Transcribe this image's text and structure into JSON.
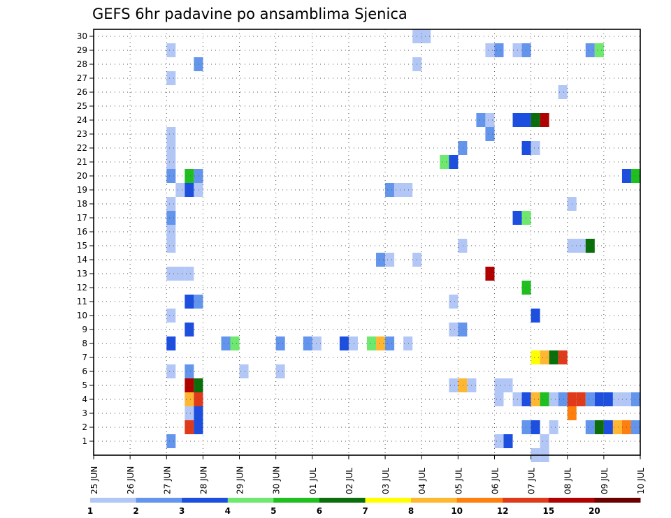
{
  "chart_data": {
    "type": "heatmap",
    "title": "GEFS 6hr padavine po ansamblima Sjenica",
    "x_ticks": [
      "25 JUN",
      "26 JUN",
      "27 JUN",
      "28 JUN",
      "29 JUN",
      "30 JUN",
      "01 JUL",
      "02 JUL",
      "03 JUL",
      "04 JUL",
      "05 JUL",
      "06 JUL",
      "07 JUL",
      "08 JUL",
      "09 JUL",
      "10 JUL"
    ],
    "y_ticks": [
      "1",
      "2",
      "3",
      "4",
      "5",
      "6",
      "7",
      "8",
      "9",
      "10",
      "11",
      "12",
      "13",
      "14",
      "15",
      "16",
      "17",
      "18",
      "19",
      "20",
      "21",
      "22",
      "23",
      "24",
      "25",
      "26",
      "27",
      "28",
      "29",
      "30"
    ],
    "members": [
      1,
      30
    ],
    "step_hours": 6,
    "grid": true,
    "colorbar": {
      "levels": [
        "1",
        "2",
        "3",
        "4",
        "5",
        "6",
        "7",
        "8",
        "10",
        "12",
        "15",
        "20"
      ],
      "colors": [
        "#b3c7f7",
        "#6495ed",
        "#1c4ee0",
        "#6ee86e",
        "#1fbf1f",
        "#0a6e0a",
        "#ffff00",
        "#ffb732",
        "#ff7f0e",
        "#e03a1a",
        "#b00000",
        "#6b0000"
      ]
    },
    "cells": [
      {
        "member": 1,
        "start": "27 JUN 00",
        "steps": 1,
        "level": 2
      },
      {
        "member": 1,
        "start": "06 JUL 00",
        "steps": 1,
        "level": 1
      },
      {
        "member": 1,
        "start": "06 JUL 06",
        "steps": 1,
        "level": 3
      },
      {
        "member": 1,
        "start": "07 JUL 06",
        "steps": 1,
        "level": 1
      },
      {
        "member": 0,
        "start": "07 JUL 00",
        "steps": 1,
        "level": 1
      },
      {
        "member": 0,
        "start": "07 JUL 06",
        "steps": 1,
        "level": 1
      },
      {
        "member": 2,
        "start": "27 JUN 12",
        "steps": 1,
        "level": 12
      },
      {
        "member": 2,
        "start": "27 JUN 18",
        "steps": 1,
        "level": 3
      },
      {
        "member": 2,
        "start": "06 JUL 18",
        "steps": 1,
        "level": 2
      },
      {
        "member": 2,
        "start": "07 JUL 00",
        "steps": 1,
        "level": 3
      },
      {
        "member": 2,
        "start": "07 JUL 12",
        "steps": 1,
        "level": 1
      },
      {
        "member": 2,
        "start": "08 JUL 12",
        "steps": 1,
        "level": 2
      },
      {
        "member": 2,
        "start": "08 JUL 18",
        "steps": 1,
        "level": 6
      },
      {
        "member": 2,
        "start": "09 JUL 00",
        "steps": 1,
        "level": 3
      },
      {
        "member": 2,
        "start": "09 JUL 06",
        "steps": 1,
        "level": 8
      },
      {
        "member": 2,
        "start": "09 JUL 12",
        "steps": 1,
        "level": 10
      },
      {
        "member": 2,
        "start": "09 JUL 18",
        "steps": 1,
        "level": 2
      },
      {
        "member": 3,
        "start": "27 JUN 12",
        "steps": 1,
        "level": 1
      },
      {
        "member": 3,
        "start": "27 JUN 18",
        "steps": 1,
        "level": 3
      },
      {
        "member": 3,
        "start": "08 JUL 00",
        "steps": 1,
        "level": 10
      },
      {
        "member": 4,
        "start": "27 JUN 12",
        "steps": 1,
        "level": 8
      },
      {
        "member": 4,
        "start": "27 JUN 18",
        "steps": 1,
        "level": 12
      },
      {
        "member": 4,
        "start": "06 JUL 00",
        "steps": 1,
        "level": 1
      },
      {
        "member": 4,
        "start": "06 JUL 12",
        "steps": 1,
        "level": 1
      },
      {
        "member": 4,
        "start": "06 JUL 18",
        "steps": 1,
        "level": 3
      },
      {
        "member": 4,
        "start": "07 JUL 00",
        "steps": 1,
        "level": 8
      },
      {
        "member": 4,
        "start": "07 JUL 06",
        "steps": 1,
        "level": 5
      },
      {
        "member": 4,
        "start": "07 JUL 12",
        "steps": 1,
        "level": 1
      },
      {
        "member": 4,
        "start": "07 JUL 18",
        "steps": 1,
        "level": 2
      },
      {
        "member": 4,
        "start": "08 JUL 00",
        "steps": 1,
        "level": 12
      },
      {
        "member": 4,
        "start": "08 JUL 06",
        "steps": 1,
        "level": 12
      },
      {
        "member": 4,
        "start": "08 JUL 12",
        "steps": 1,
        "level": 2
      },
      {
        "member": 4,
        "start": "08 JUL 18",
        "steps": 1,
        "level": 3
      },
      {
        "member": 4,
        "start": "09 JUL 00",
        "steps": 1,
        "level": 3
      },
      {
        "member": 4,
        "start": "09 JUL 06",
        "steps": 1,
        "level": 1
      },
      {
        "member": 4,
        "start": "09 JUL 12",
        "steps": 1,
        "level": 1
      },
      {
        "member": 4,
        "start": "09 JUL 18",
        "steps": 1,
        "level": 2
      },
      {
        "member": 5,
        "start": "27 JUN 12",
        "steps": 1,
        "level": 15
      },
      {
        "member": 5,
        "start": "27 JUN 18",
        "steps": 1,
        "level": 6
      },
      {
        "member": 5,
        "start": "04 JUL 18",
        "steps": 1,
        "level": 1
      },
      {
        "member": 5,
        "start": "05 JUL 00",
        "steps": 1,
        "level": 8
      },
      {
        "member": 5,
        "start": "05 JUL 06",
        "steps": 1,
        "level": 1
      },
      {
        "member": 5,
        "start": "06 JUL 00",
        "steps": 2,
        "level": 1
      },
      {
        "member": 6,
        "start": "27 JUN 00",
        "steps": 1,
        "level": 1
      },
      {
        "member": 6,
        "start": "27 JUN 12",
        "steps": 1,
        "level": 2
      },
      {
        "member": 6,
        "start": "29 JUN 00",
        "steps": 1,
        "level": 1
      },
      {
        "member": 6,
        "start": "30 JUN 00",
        "steps": 1,
        "level": 1
      },
      {
        "member": 7,
        "start": "07 JUL 00",
        "steps": 1,
        "level": 7
      },
      {
        "member": 7,
        "start": "07 JUL 06",
        "steps": 1,
        "level": 8
      },
      {
        "member": 7,
        "start": "07 JUL 12",
        "steps": 1,
        "level": 6
      },
      {
        "member": 7,
        "start": "07 JUL 18",
        "steps": 1,
        "level": 12
      },
      {
        "member": 8,
        "start": "27 JUN 00",
        "steps": 1,
        "level": 3
      },
      {
        "member": 8,
        "start": "28 JUN 12",
        "steps": 1,
        "level": 2
      },
      {
        "member": 8,
        "start": "28 JUN 18",
        "steps": 1,
        "level": 4
      },
      {
        "member": 8,
        "start": "30 JUN 00",
        "steps": 1,
        "level": 2
      },
      {
        "member": 8,
        "start": "30 JUN 18",
        "steps": 1,
        "level": 2
      },
      {
        "member": 8,
        "start": "01 JUL 00",
        "steps": 1,
        "level": 1
      },
      {
        "member": 8,
        "start": "01 JUL 18",
        "steps": 1,
        "level": 3
      },
      {
        "member": 8,
        "start": "02 JUL 00",
        "steps": 1,
        "level": 1
      },
      {
        "member": 8,
        "start": "02 JUL 12",
        "steps": 1,
        "level": 4
      },
      {
        "member": 8,
        "start": "02 JUL 18",
        "steps": 1,
        "level": 8
      },
      {
        "member": 8,
        "start": "03 JUL 00",
        "steps": 1,
        "level": 2
      },
      {
        "member": 8,
        "start": "03 JUL 12",
        "steps": 1,
        "level": 1
      },
      {
        "member": 9,
        "start": "27 JUN 12",
        "steps": 1,
        "level": 3
      },
      {
        "member": 9,
        "start": "04 JUL 18",
        "steps": 1,
        "level": 1
      },
      {
        "member": 9,
        "start": "05 JUL 00",
        "steps": 1,
        "level": 2
      },
      {
        "member": 10,
        "start": "27 JUN 00",
        "steps": 1,
        "level": 1
      },
      {
        "member": 10,
        "start": "07 JUL 00",
        "steps": 1,
        "level": 3
      },
      {
        "member": 11,
        "start": "27 JUN 12",
        "steps": 1,
        "level": 3
      },
      {
        "member": 11,
        "start": "27 JUN 18",
        "steps": 1,
        "level": 2
      },
      {
        "member": 11,
        "start": "04 JUL 18",
        "steps": 1,
        "level": 1
      },
      {
        "member": 12,
        "start": "06 JUL 18",
        "steps": 1,
        "level": 5
      },
      {
        "member": 13,
        "start": "05 JUL 18",
        "steps": 1,
        "level": 15
      },
      {
        "member": 13,
        "start": "27 JUN 00",
        "steps": 2,
        "level": 1
      },
      {
        "member": 13,
        "start": "27 JUN 12",
        "steps": 1,
        "level": 1
      },
      {
        "member": 14,
        "start": "02 JUL 18",
        "steps": 1,
        "level": 2
      },
      {
        "member": 14,
        "start": "03 JUL 00",
        "steps": 1,
        "level": 1
      },
      {
        "member": 14,
        "start": "03 JUL 18",
        "steps": 1,
        "level": 1
      },
      {
        "member": 15,
        "start": "27 JUN 00",
        "steps": 1,
        "level": 1
      },
      {
        "member": 15,
        "start": "05 JUL 00",
        "steps": 1,
        "level": 1
      },
      {
        "member": 15,
        "start": "08 JUL 00",
        "steps": 2,
        "level": 1
      },
      {
        "member": 15,
        "start": "08 JUL 12",
        "steps": 1,
        "level": 6
      },
      {
        "member": 16,
        "start": "27 JUN 00",
        "steps": 1,
        "level": 1
      },
      {
        "member": 17,
        "start": "27 JUN 00",
        "steps": 1,
        "level": 2
      },
      {
        "member": 17,
        "start": "06 JUL 12",
        "steps": 1,
        "level": 3
      },
      {
        "member": 17,
        "start": "06 JUL 18",
        "steps": 1,
        "level": 4
      },
      {
        "member": 18,
        "start": "27 JUN 00",
        "steps": 1,
        "level": 1
      },
      {
        "member": 18,
        "start": "08 JUL 00",
        "steps": 1,
        "level": 1
      },
      {
        "member": 19,
        "start": "27 JUN 06",
        "steps": 1,
        "level": 1
      },
      {
        "member": 19,
        "start": "27 JUN 12",
        "steps": 1,
        "level": 3
      },
      {
        "member": 19,
        "start": "27 JUN 18",
        "steps": 1,
        "level": 1
      },
      {
        "member": 19,
        "start": "03 JUL 00",
        "steps": 1,
        "level": 2
      },
      {
        "member": 19,
        "start": "03 JUL 06",
        "steps": 2,
        "level": 1
      },
      {
        "member": 20,
        "start": "27 JUN 00",
        "steps": 1,
        "level": 2
      },
      {
        "member": 20,
        "start": "27 JUN 12",
        "steps": 1,
        "level": 5
      },
      {
        "member": 20,
        "start": "27 JUN 18",
        "steps": 1,
        "level": 2
      },
      {
        "member": 20,
        "start": "09 JUL 12",
        "steps": 1,
        "level": 3
      },
      {
        "member": 20,
        "start": "09 JUL 18",
        "steps": 1,
        "level": 5
      },
      {
        "member": 21,
        "start": "27 JUN 00",
        "steps": 1,
        "level": 1
      },
      {
        "member": 21,
        "start": "04 JUL 12",
        "steps": 1,
        "level": 4
      },
      {
        "member": 21,
        "start": "04 JUL 18",
        "steps": 1,
        "level": 3
      },
      {
        "member": 22,
        "start": "27 JUN 00",
        "steps": 1,
        "level": 1
      },
      {
        "member": 22,
        "start": "05 JUL 00",
        "steps": 1,
        "level": 2
      },
      {
        "member": 22,
        "start": "06 JUL 18",
        "steps": 1,
        "level": 3
      },
      {
        "member": 22,
        "start": "07 JUL 00",
        "steps": 1,
        "level": 1
      },
      {
        "member": 23,
        "start": "27 JUN 00",
        "steps": 1,
        "level": 1
      },
      {
        "member": 23,
        "start": "05 JUL 18",
        "steps": 1,
        "level": 2
      },
      {
        "member": 24,
        "start": "05 JUL 12",
        "steps": 1,
        "level": 2
      },
      {
        "member": 24,
        "start": "05 JUL 18",
        "steps": 1,
        "level": 1
      },
      {
        "member": 24,
        "start": "06 JUL 12",
        "steps": 2,
        "level": 3
      },
      {
        "member": 24,
        "start": "07 JUL 00",
        "steps": 1,
        "level": 6
      },
      {
        "member": 24,
        "start": "07 JUL 06",
        "steps": 1,
        "level": 15
      },
      {
        "member": 26,
        "start": "07 JUL 18",
        "steps": 1,
        "level": 1
      },
      {
        "member": 27,
        "start": "27 JUN 00",
        "steps": 1,
        "level": 1
      },
      {
        "member": 28,
        "start": "27 JUN 18",
        "steps": 1,
        "level": 2
      },
      {
        "member": 28,
        "start": "03 JUL 18",
        "steps": 1,
        "level": 1
      },
      {
        "member": 29,
        "start": "27 JUN 00",
        "steps": 1,
        "level": 1
      },
      {
        "member": 29,
        "start": "05 JUL 18",
        "steps": 1,
        "level": 1
      },
      {
        "member": 29,
        "start": "06 JUL 00",
        "steps": 1,
        "level": 2
      },
      {
        "member": 29,
        "start": "06 JUL 12",
        "steps": 1,
        "level": 1
      },
      {
        "member": 29,
        "start": "06 JUL 18",
        "steps": 1,
        "level": 2
      },
      {
        "member": 29,
        "start": "08 JUL 12",
        "steps": 1,
        "level": 2
      },
      {
        "member": 29,
        "start": "08 JUL 18",
        "steps": 1,
        "level": 4
      },
      {
        "member": 30,
        "start": "03 JUL 18",
        "steps": 2,
        "level": 1
      }
    ]
  }
}
